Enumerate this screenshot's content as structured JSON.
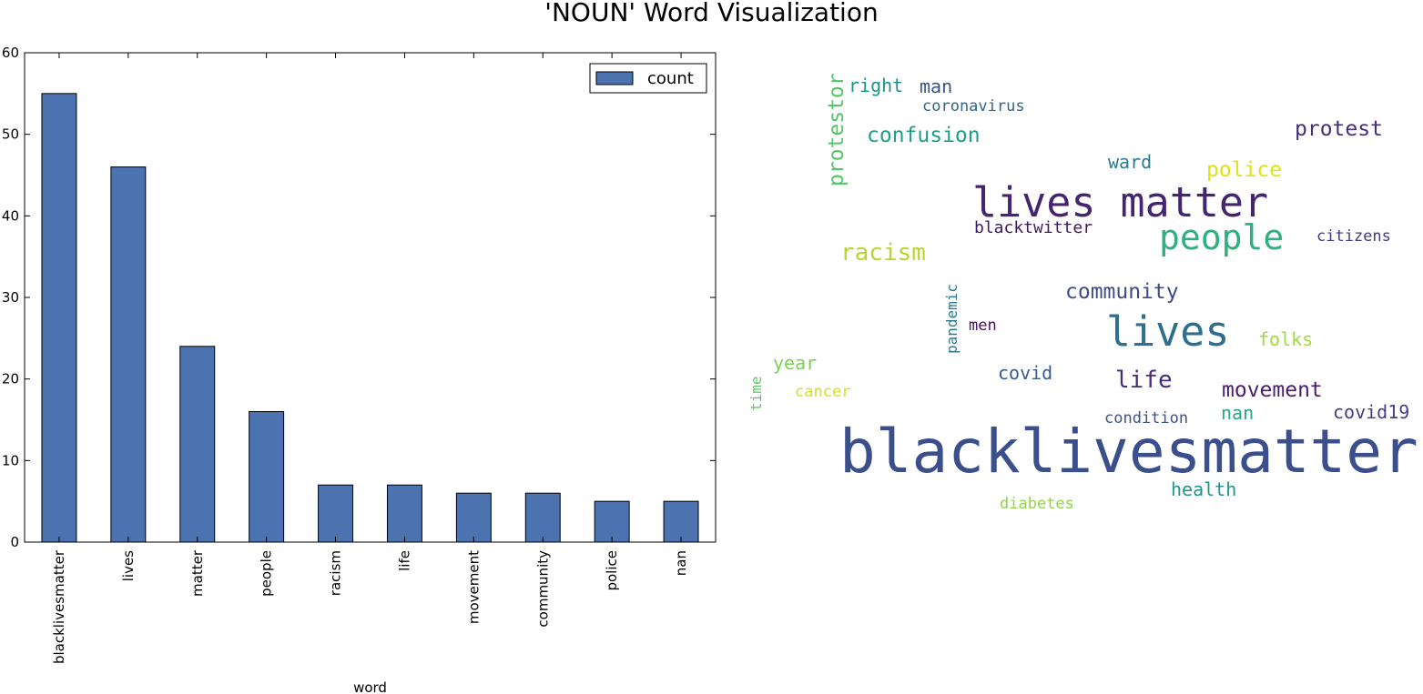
{
  "title": "'NOUN' Word Visualization",
  "chart_data": [
    {
      "type": "bar",
      "title": "",
      "xlabel": "word",
      "ylabel": "",
      "categories": [
        "blacklivesmatter",
        "lives",
        "matter",
        "people",
        "racism",
        "life",
        "movement",
        "community",
        "police",
        "nan"
      ],
      "series": [
        {
          "name": "count",
          "values": [
            55,
            46,
            24,
            16,
            7,
            7,
            6,
            6,
            5,
            5
          ],
          "color": "#4c72b0"
        }
      ],
      "ylim": [
        0,
        60
      ],
      "yticks": [
        0,
        10,
        20,
        30,
        40,
        50,
        60
      ],
      "grid": false,
      "legend": "top-right"
    }
  ],
  "wordcloud": {
    "words": [
      {
        "text": "blacklivesmatter",
        "color": "#3b4f8c"
      },
      {
        "text": "lives matter",
        "color": "#45256f"
      },
      {
        "text": "lives",
        "color": "#2f6e8e"
      },
      {
        "text": "people",
        "color": "#2fb07f"
      },
      {
        "text": "racism",
        "color": "#b9d530"
      },
      {
        "text": "community",
        "color": "#3f4b8a"
      },
      {
        "text": "confusion",
        "color": "#1f9e89"
      },
      {
        "text": "protest",
        "color": "#472e7c"
      },
      {
        "text": "movement",
        "color": "#4a1c6e"
      },
      {
        "text": "life",
        "color": "#472d7b"
      },
      {
        "text": "police",
        "color": "#dde318"
      },
      {
        "text": "protestor",
        "color": "#54c568"
      },
      {
        "text": "right",
        "color": "#21918c"
      },
      {
        "text": "man",
        "color": "#3a5389"
      },
      {
        "text": "coronavirus",
        "color": "#31678e"
      },
      {
        "text": "ward",
        "color": "#287c8e"
      },
      {
        "text": "blacktwitter",
        "color": "#3e1a5e"
      },
      {
        "text": "citizens",
        "color": "#443983"
      },
      {
        "text": "pandemic",
        "color": "#2a788e"
      },
      {
        "text": "men",
        "color": "#46105e"
      },
      {
        "text": "folks",
        "color": "#a2da37"
      },
      {
        "text": "year",
        "color": "#7ad151"
      },
      {
        "text": "covid",
        "color": "#365c8d"
      },
      {
        "text": "time",
        "color": "#5ec962"
      },
      {
        "text": "cancer",
        "color": "#d4e21a"
      },
      {
        "text": "nan",
        "color": "#25a784"
      },
      {
        "text": "covid19",
        "color": "#433e85"
      },
      {
        "text": "condition",
        "color": "#3b528b"
      },
      {
        "text": "health",
        "color": "#1f958b"
      },
      {
        "text": "diabetes",
        "color": "#8ed645"
      }
    ]
  }
}
